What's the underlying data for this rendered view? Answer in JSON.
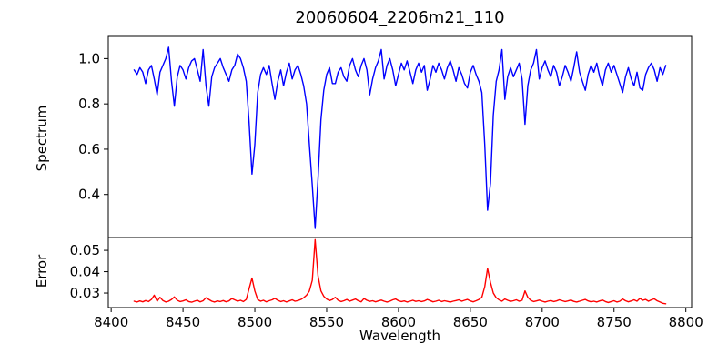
{
  "figure": {
    "title": "20060604_2206m21_110",
    "background": "#ffffff",
    "frame_color": "#000000"
  },
  "xaxis": {
    "label": "Wavelength",
    "xlim": [
      8398,
      8804
    ],
    "xticks": [
      8400,
      8450,
      8500,
      8550,
      8600,
      8650,
      8700,
      8750,
      8800
    ]
  },
  "chart_data": [
    {
      "type": "line",
      "name": "spectrum",
      "ylabel": "Spectrum",
      "color": "#0000ff",
      "ylim": [
        0.21,
        1.098
      ],
      "ytick_values": [
        0.4,
        0.6,
        0.8,
        1.0
      ],
      "ytick_labels": [
        "0.4",
        "0.6",
        "0.8",
        "1.0"
      ],
      "x_start": 8416,
      "x_step": 2,
      "values": [
        0.95,
        0.93,
        0.96,
        0.94,
        0.89,
        0.95,
        0.97,
        0.91,
        0.84,
        0.94,
        0.97,
        1.0,
        1.05,
        0.9,
        0.79,
        0.92,
        0.97,
        0.95,
        0.91,
        0.96,
        0.99,
        1.0,
        0.95,
        0.9,
        1.04,
        0.88,
        0.79,
        0.92,
        0.96,
        0.98,
        1.0,
        0.96,
        0.93,
        0.9,
        0.95,
        0.97,
        1.02,
        1.0,
        0.96,
        0.9,
        0.72,
        0.49,
        0.62,
        0.85,
        0.93,
        0.96,
        0.93,
        0.97,
        0.89,
        0.82,
        0.9,
        0.95,
        0.88,
        0.94,
        0.98,
        0.91,
        0.95,
        0.97,
        0.93,
        0.88,
        0.8,
        0.62,
        0.44,
        0.25,
        0.47,
        0.73,
        0.86,
        0.93,
        0.96,
        0.89,
        0.89,
        0.94,
        0.96,
        0.92,
        0.9,
        0.97,
        1.0,
        0.95,
        0.92,
        0.97,
        1.0,
        0.95,
        0.84,
        0.91,
        0.96,
        0.99,
        1.04,
        0.91,
        0.97,
        1.0,
        0.95,
        0.88,
        0.93,
        0.98,
        0.95,
        0.99,
        0.94,
        0.89,
        0.95,
        0.98,
        0.94,
        0.97,
        0.86,
        0.91,
        0.97,
        0.94,
        0.98,
        0.95,
        0.91,
        0.96,
        0.99,
        0.95,
        0.9,
        0.96,
        0.93,
        0.89,
        0.87,
        0.94,
        0.97,
        0.93,
        0.9,
        0.85,
        0.62,
        0.33,
        0.45,
        0.75,
        0.9,
        0.95,
        1.04,
        0.82,
        0.92,
        0.96,
        0.92,
        0.95,
        0.98,
        0.91,
        0.71,
        0.88,
        0.95,
        0.98,
        1.04,
        0.91,
        0.96,
        0.99,
        0.95,
        0.92,
        0.97,
        0.94,
        0.88,
        0.92,
        0.97,
        0.94,
        0.9,
        0.96,
        1.03,
        0.94,
        0.9,
        0.86,
        0.93,
        0.97,
        0.94,
        0.98,
        0.92,
        0.88,
        0.95,
        0.98,
        0.94,
        0.97,
        0.93,
        0.89,
        0.85,
        0.92,
        0.96,
        0.91,
        0.88,
        0.94,
        0.87,
        0.86,
        0.93,
        0.96,
        0.98,
        0.95,
        0.9,
        0.96,
        0.93,
        0.97
      ]
    },
    {
      "type": "line",
      "name": "error",
      "ylabel": "Error",
      "color": "#ff0000",
      "ylim": [
        0.0232,
        0.056
      ],
      "ytick_values": [
        0.03,
        0.04,
        0.05
      ],
      "ytick_labels": [
        "0.03",
        "0.04",
        "0.05"
      ],
      "x_start": 8416,
      "x_step": 2,
      "values": [
        0.0262,
        0.0258,
        0.0263,
        0.0259,
        0.0265,
        0.026,
        0.027,
        0.029,
        0.0262,
        0.028,
        0.0265,
        0.0258,
        0.0262,
        0.027,
        0.0282,
        0.0266,
        0.026,
        0.0263,
        0.0268,
        0.026,
        0.0257,
        0.0262,
        0.0266,
        0.0259,
        0.0264,
        0.0278,
        0.027,
        0.0262,
        0.0258,
        0.0263,
        0.026,
        0.0265,
        0.0259,
        0.0263,
        0.0274,
        0.0268,
        0.0262,
        0.0266,
        0.026,
        0.027,
        0.032,
        0.037,
        0.031,
        0.027,
        0.0262,
        0.0266,
        0.0259,
        0.0264,
        0.0268,
        0.0275,
        0.0266,
        0.026,
        0.0264,
        0.0258,
        0.0263,
        0.0268,
        0.0262,
        0.0265,
        0.027,
        0.0278,
        0.029,
        0.031,
        0.036,
        0.055,
        0.038,
        0.031,
        0.0285,
        0.0272,
        0.0265,
        0.027,
        0.028,
        0.0266,
        0.026,
        0.0264,
        0.027,
        0.0262,
        0.0267,
        0.0272,
        0.0264,
        0.0259,
        0.0274,
        0.0266,
        0.0261,
        0.0264,
        0.0259,
        0.0263,
        0.0267,
        0.0262,
        0.0258,
        0.0262,
        0.0268,
        0.0272,
        0.0264,
        0.026,
        0.0263,
        0.0258,
        0.0262,
        0.0266,
        0.0261,
        0.0264,
        0.026,
        0.0263,
        0.027,
        0.0265,
        0.0259,
        0.0262,
        0.0266,
        0.026,
        0.0264,
        0.0261,
        0.0258,
        0.0262,
        0.0265,
        0.0268,
        0.0262,
        0.0266,
        0.027,
        0.0263,
        0.0259,
        0.0264,
        0.027,
        0.028,
        0.033,
        0.0415,
        0.035,
        0.03,
        0.0278,
        0.0268,
        0.0262,
        0.0272,
        0.0266,
        0.0261,
        0.0264,
        0.0268,
        0.0262,
        0.0266,
        0.031,
        0.028,
        0.0266,
        0.026,
        0.0263,
        0.0267,
        0.0262,
        0.0258,
        0.0262,
        0.0265,
        0.026,
        0.0263,
        0.0268,
        0.0264,
        0.026,
        0.0263,
        0.0267,
        0.0261,
        0.0258,
        0.0262,
        0.0266,
        0.027,
        0.0263,
        0.0259,
        0.0262,
        0.0258,
        0.0263,
        0.0267,
        0.026,
        0.0256,
        0.026,
        0.0264,
        0.0258,
        0.0262,
        0.0272,
        0.0264,
        0.0259,
        0.0263,
        0.0268,
        0.0262,
        0.0275,
        0.0266,
        0.027,
        0.0262,
        0.0268,
        0.0273,
        0.0264,
        0.0258,
        0.0252,
        0.025
      ]
    }
  ]
}
